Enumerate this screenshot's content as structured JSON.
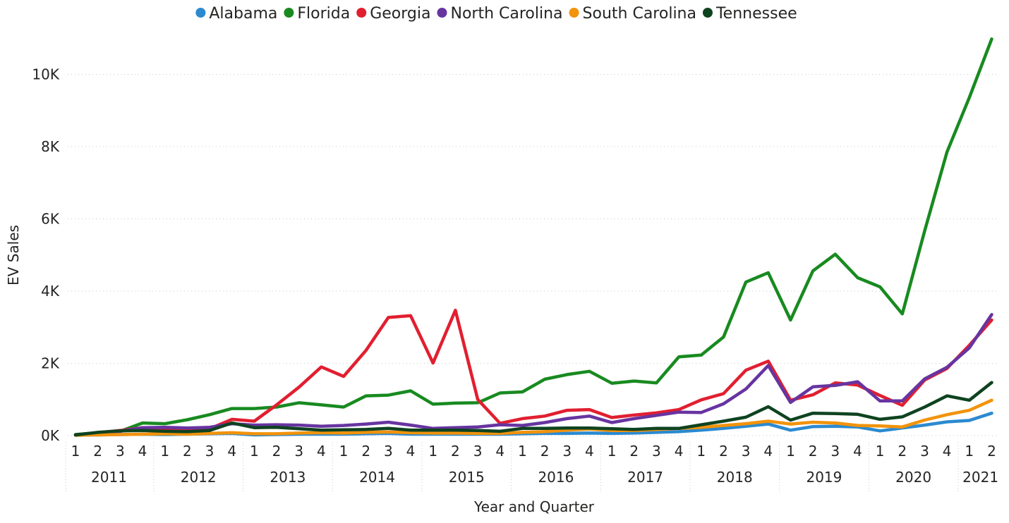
{
  "chart_data": {
    "type": "line",
    "title": "",
    "xlabel": "Year and Quarter",
    "ylabel": "EV Sales",
    "ylim": [
      0,
      11000
    ],
    "yticks": [
      0,
      2000,
      4000,
      6000,
      8000,
      10000
    ],
    "ytick_labels": [
      "0K",
      "2K",
      "4K",
      "6K",
      "8K",
      "10K"
    ],
    "grid": true,
    "legend_position": "top",
    "years": [
      "2011",
      "2012",
      "2013",
      "2014",
      "2015",
      "2016",
      "2017",
      "2018",
      "2019",
      "2020",
      "2021"
    ],
    "quarters_per_year": [
      4,
      4,
      4,
      4,
      4,
      4,
      4,
      4,
      4,
      4,
      2
    ],
    "categories": [
      "2011 Q1",
      "2011 Q2",
      "2011 Q3",
      "2011 Q4",
      "2012 Q1",
      "2012 Q2",
      "2012 Q3",
      "2012 Q4",
      "2013 Q1",
      "2013 Q2",
      "2013 Q3",
      "2013 Q4",
      "2014 Q1",
      "2014 Q2",
      "2014 Q3",
      "2014 Q4",
      "2015 Q1",
      "2015 Q2",
      "2015 Q3",
      "2015 Q4",
      "2016 Q1",
      "2016 Q2",
      "2016 Q3",
      "2016 Q4",
      "2017 Q1",
      "2017 Q2",
      "2017 Q3",
      "2017 Q4",
      "2018 Q1",
      "2018 Q2",
      "2018 Q3",
      "2018 Q4",
      "2019 Q1",
      "2019 Q2",
      "2019 Q3",
      "2019 Q4",
      "2020 Q1",
      "2020 Q2",
      "2020 Q3",
      "2020 Q4",
      "2021 Q1",
      "2021 Q2"
    ],
    "series": [
      {
        "name": "Alabama",
        "color": "#2b8ad0",
        "values": [
          10,
          20,
          30,
          40,
          30,
          40,
          50,
          60,
          20,
          30,
          40,
          40,
          40,
          50,
          60,
          40,
          40,
          40,
          40,
          40,
          50,
          60,
          60,
          70,
          60,
          70,
          90,
          110,
          150,
          200,
          260,
          320,
          150,
          250,
          260,
          240,
          130,
          210,
          290,
          380,
          420,
          620
        ]
      },
      {
        "name": "Florida",
        "color": "#188a20",
        "values": [
          30,
          80,
          120,
          350,
          330,
          440,
          580,
          750,
          750,
          790,
          910,
          850,
          790,
          1100,
          1120,
          1240,
          870,
          900,
          910,
          1180,
          1210,
          1560,
          1690,
          1780,
          1450,
          1510,
          1460,
          2180,
          2230,
          2730,
          4250,
          4510,
          3200,
          4560,
          5020,
          4370,
          4120,
          3370,
          5670,
          7850,
          9360,
          10980
        ]
      },
      {
        "name": "Georgia",
        "color": "#e11f30",
        "values": [
          20,
          80,
          140,
          220,
          200,
          180,
          190,
          450,
          400,
          850,
          1340,
          1900,
          1640,
          2360,
          3270,
          3320,
          2010,
          3470,
          1000,
          340,
          470,
          540,
          700,
          720,
          500,
          570,
          630,
          720,
          990,
          1160,
          1810,
          2060,
          980,
          1130,
          1460,
          1400,
          1110,
          840,
          1540,
          1860,
          2500,
          3200
        ]
      },
      {
        "name": "North Carolina",
        "color": "#6734a0",
        "values": [
          20,
          80,
          120,
          220,
          230,
          210,
          230,
          330,
          290,
          300,
          290,
          260,
          280,
          320,
          370,
          290,
          200,
          220,
          240,
          300,
          280,
          360,
          470,
          540,
          360,
          470,
          560,
          650,
          640,
          880,
          1290,
          1940,
          920,
          1350,
          1390,
          1490,
          960,
          960,
          1570,
          1890,
          2430,
          3350
        ]
      },
      {
        "name": "South Carolina",
        "color": "#f2930c",
        "values": [
          10,
          20,
          30,
          40,
          50,
          40,
          60,
          80,
          50,
          50,
          70,
          80,
          70,
          90,
          100,
          80,
          70,
          70,
          60,
          60,
          90,
          110,
          150,
          180,
          140,
          140,
          170,
          200,
          230,
          280,
          330,
          400,
          320,
          370,
          350,
          280,
          270,
          240,
          430,
          580,
          700,
          980
        ]
      },
      {
        "name": "Tennessee",
        "color": "#0e4320",
        "values": [
          20,
          90,
          130,
          140,
          120,
          110,
          140,
          350,
          220,
          230,
          190,
          150,
          160,
          170,
          200,
          150,
          150,
          150,
          140,
          120,
          200,
          200,
          210,
          210,
          190,
          170,
          200,
          200,
          300,
          400,
          510,
          800,
          430,
          620,
          610,
          590,
          450,
          520,
          790,
          1100,
          980,
          1470
        ]
      }
    ]
  }
}
